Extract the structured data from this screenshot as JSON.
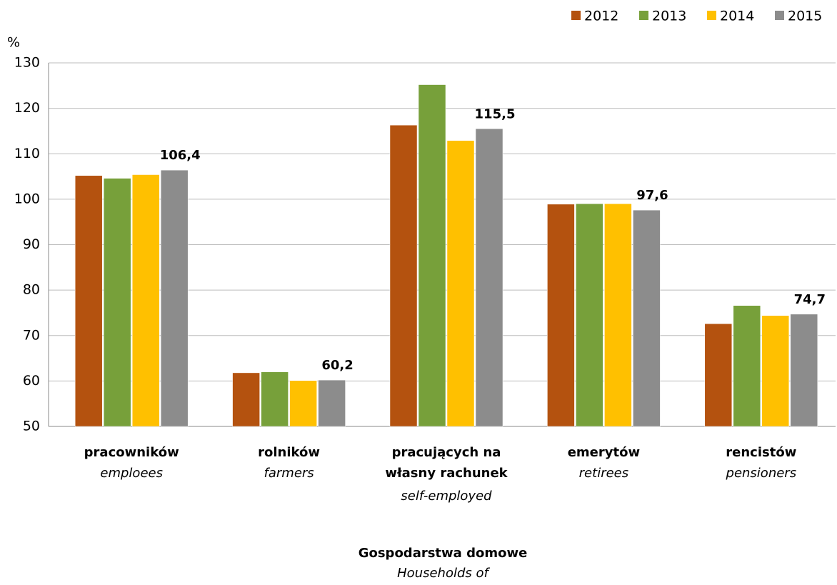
{
  "chart_data": {
    "type": "bar",
    "y_label": "%",
    "x_label": "Gospodarstwa domowe",
    "x_label_en": "Households of",
    "categories": [
      "pracowników",
      "rolników",
      "pracujących na własny rachunek",
      "emerytów",
      "rencistów"
    ],
    "categories_en": [
      "emploees",
      "farmers",
      "self-employed",
      "retirees",
      "pensioners"
    ],
    "series": [
      {
        "name": "2012",
        "color": "#b4520f",
        "values": [
          105.2,
          61.8,
          116.3,
          98.9,
          72.6
        ]
      },
      {
        "name": "2013",
        "color": "#77a03a",
        "values": [
          104.6,
          62.0,
          125.2,
          99.0,
          76.6
        ]
      },
      {
        "name": "2014",
        "color": "#ffc000",
        "values": [
          105.4,
          60.1,
          112.9,
          99.0,
          74.4
        ]
      },
      {
        "name": "2015",
        "color": "#8c8c8c",
        "values": [
          106.4,
          60.2,
          115.5,
          97.6,
          74.7
        ],
        "value_labels": [
          "106,4",
          "60,2",
          "115,5",
          "97,6",
          "74,7"
        ]
      }
    ],
    "ylim": [
      50,
      130
    ],
    "yticks": [
      50,
      60,
      70,
      80,
      90,
      100,
      110,
      120,
      130
    ],
    "grid": true,
    "legend": "top-right"
  }
}
